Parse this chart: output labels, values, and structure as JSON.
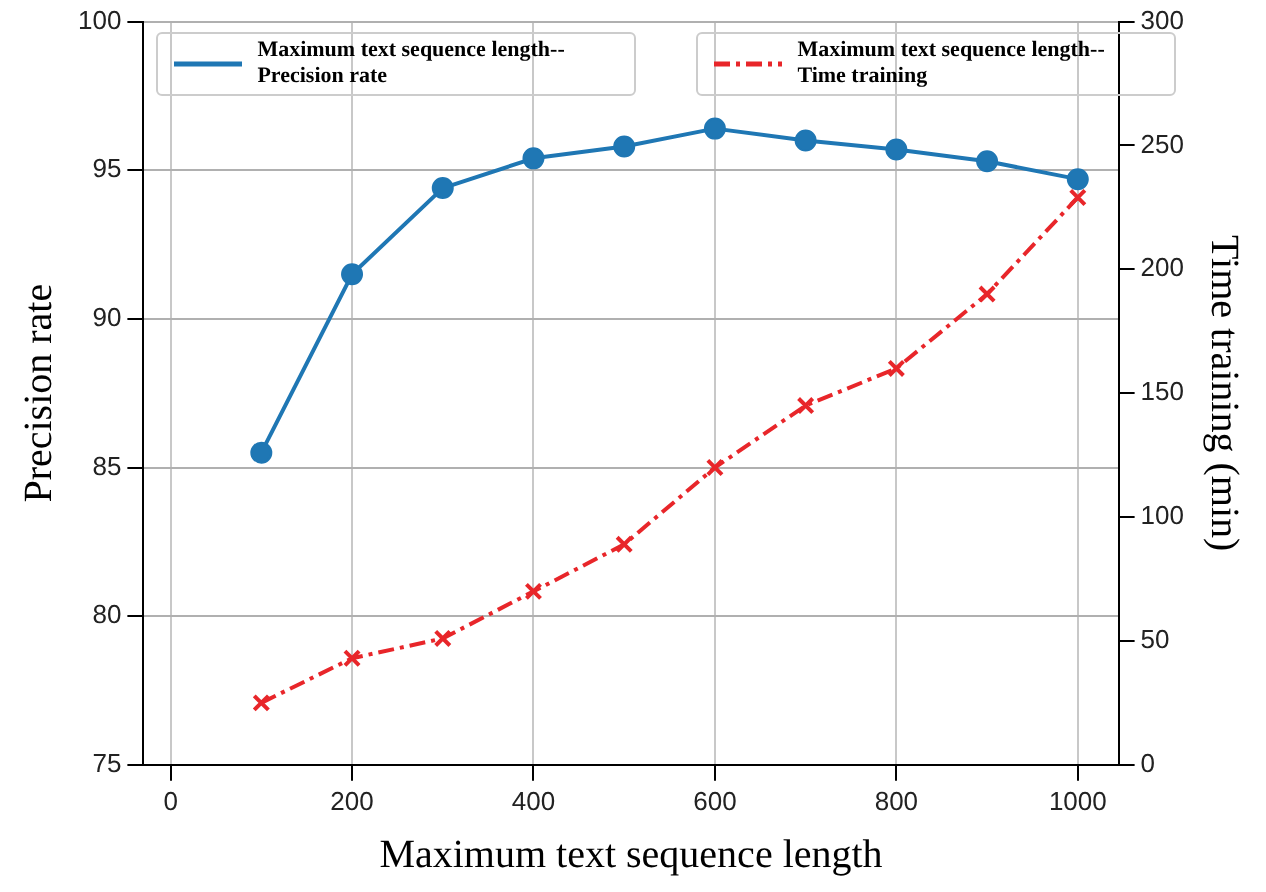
{
  "chart_data": {
    "type": "line",
    "xlabel": "Maximum text sequence length",
    "ylabel": "Precision rate",
    "y2label": "Time training (min)",
    "x": [
      100,
      200,
      300,
      400,
      500,
      600,
      700,
      800,
      900,
      1000
    ],
    "series": [
      {
        "name": "Maximum text sequence length-- Precision rate",
        "color": "#1f77b4",
        "marker": "circle",
        "line_style": "solid",
        "values": [
          85.5,
          91.5,
          94.4,
          95.4,
          95.8,
          96.4,
          96.0,
          95.7,
          95.3,
          94.7
        ]
      },
      {
        "name": "Maximum text sequence length-- Time training",
        "color": "#e8262a",
        "marker": "cross",
        "line_style": "dashed",
        "axis": "y2",
        "values": [
          25,
          43,
          51,
          70,
          89,
          120,
          145,
          160,
          190,
          229
        ]
      }
    ],
    "xlim": [
      -30,
      1045
    ],
    "xticks": [
      0,
      200,
      400,
      600,
      800,
      1000
    ],
    "ylim": [
      75,
      100
    ],
    "yticks": [
      75,
      80,
      85,
      90,
      95,
      100
    ],
    "y2lim": [
      0,
      300
    ],
    "y2ticks": [
      0,
      50,
      100,
      150,
      200,
      250,
      300
    ],
    "grid": true,
    "legend": "top"
  }
}
